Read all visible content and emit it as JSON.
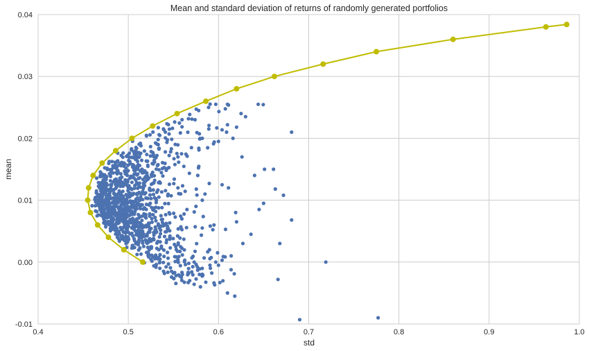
{
  "chart_data": {
    "type": "scatter",
    "title": "Mean and standard deviation of returns of randomly generated portfolios",
    "xlabel": "std",
    "ylabel": "mean",
    "xlim": [
      0.4,
      1.0
    ],
    "ylim": [
      -0.01,
      0.04
    ],
    "xticks": [
      "0.4",
      "0.5",
      "0.6",
      "0.7",
      "0.8",
      "0.9",
      "1.0"
    ],
    "yticks": [
      "-0.01",
      "0.00",
      "0.01",
      "0.02",
      "0.03",
      "0.04"
    ],
    "grid": true,
    "colors": {
      "scatter": "#4c72b0",
      "frontier": "#c0bc00",
      "grid": "#cccccc",
      "background": "#ffffff"
    },
    "frontier": {
      "x": [
        0.516,
        0.495,
        0.478,
        0.466,
        0.458,
        0.455,
        0.456,
        0.461,
        0.471,
        0.486,
        0.504,
        0.527,
        0.554,
        0.586,
        0.62,
        0.662,
        0.716,
        0.775,
        0.86,
        0.963,
        0.986
      ],
      "y": [
        0.0,
        0.002,
        0.004,
        0.006,
        0.008,
        0.01,
        0.012,
        0.014,
        0.016,
        0.018,
        0.02,
        0.022,
        0.024,
        0.026,
        0.028,
        0.03,
        0.032,
        0.034,
        0.036,
        0.038,
        0.0384
      ]
    },
    "scatter_points": {
      "x": [
        0.578,
        0.589,
        0.597,
        0.61,
        0.625,
        0.644,
        0.661,
        0.681,
        0.719,
        0.777,
        0.69,
        0.618,
        0.666,
        0.61,
        0.604,
        0.597,
        0.591,
        0.6,
        0.614,
        0.62,
        0.627,
        0.636,
        0.651,
        0.681,
        0.672,
        0.668,
        0.65,
        0.663,
        0.645,
        0.62,
        0.61,
        0.626,
        0.6,
        0.616,
        0.609,
        0.63,
        0.64,
        0.611,
        0.604,
        0.619,
        0.574,
        0.582,
        0.559,
        0.57,
        0.555,
        0.582,
        0.546,
        0.573,
        0.548,
        0.56,
        0.568,
        0.58,
        0.59,
        0.575,
        0.565,
        0.582,
        0.595,
        0.599,
        0.585,
        0.577
      ],
      "y": [
        0.0245,
        0.025,
        0.0255,
        0.0255,
        0.024,
        0.0255,
        0.015,
        0.021,
        0.0,
        -0.009,
        -0.0093,
        -0.0055,
        -0.0028,
        -0.005,
        0.0003,
        0.0,
        -0.001,
        -0.0005,
        0.001,
        0.0065,
        0.003,
        0.0045,
        0.015,
        0.0068,
        0.0108,
        0.003,
        0.0095,
        0.0118,
        0.0085,
        0.0218,
        0.0222,
        0.017,
        0.0195,
        0.02,
        0.021,
        0.0235,
        0.014,
        0.012,
        0.0125,
        0.008,
        0.023,
        0.02,
        0.0175,
        0.0185,
        0.012,
        0.0055,
        0.004,
        0.0,
        -0.0015,
        -0.002,
        -0.003,
        -0.004,
        0.002,
        0.009,
        0.0085,
        0.01,
        0.006,
        0.0015,
        0.011,
        0.014
      ]
    }
  }
}
